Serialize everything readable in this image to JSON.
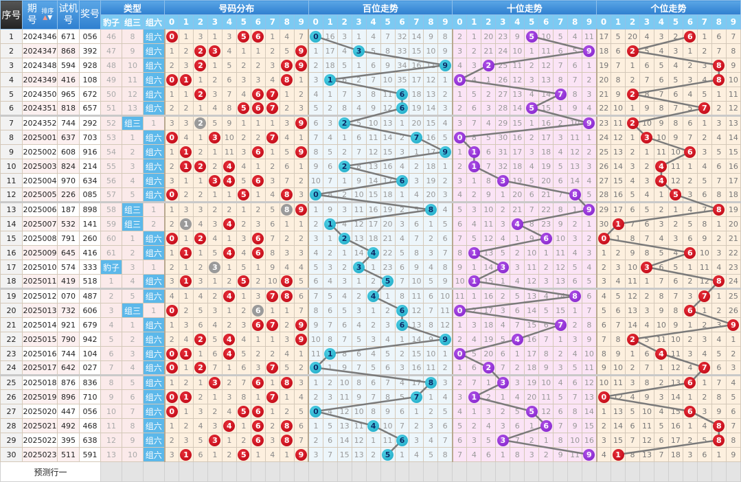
{
  "header": {
    "seq": "序号",
    "issue": "期号",
    "sort_label": "排序",
    "test": "试机号",
    "award": "奖号",
    "type_group": "类型",
    "type_cols": [
      "豹子",
      "组三",
      "组六"
    ],
    "dist_group": "号码分布",
    "bai_group": "百位走势",
    "shi_group": "十位走势",
    "ge_group": "个位走势",
    "digits": [
      "0",
      "1",
      "2",
      "3",
      "4",
      "5",
      "6",
      "7",
      "8",
      "9"
    ]
  },
  "colors": {
    "dist_ball": "#c8001a",
    "repeat_ball": "#9a9a9a",
    "bai_ball": "#27b5d0",
    "shi_ball": "#8a2be2",
    "ge_ball": "#c8001a",
    "line": "#7a7a7a",
    "type_hit": "#5cb8ea"
  },
  "first_row_omissions": {
    "type": [
      46,
      8,
      0
    ],
    "dist": [
      0,
      1,
      3,
      1,
      3,
      0,
      0,
      1,
      4,
      7
    ],
    "bai": [
      0,
      16,
      3,
      1,
      4,
      7,
      32,
      14,
      9,
      8
    ],
    "shi": [
      2,
      1,
      20,
      23,
      9,
      0,
      10,
      5,
      4,
      11
    ],
    "ge": [
      17,
      5,
      20,
      4,
      3,
      2,
      0,
      1,
      6,
      7
    ]
  },
  "rows": [
    {
      "seq": "1",
      "issue": "2024346",
      "test": "671",
      "award": "056"
    },
    {
      "seq": "2",
      "issue": "2024347",
      "test": "868",
      "award": "392"
    },
    {
      "seq": "3",
      "issue": "2024348",
      "test": "594",
      "award": "928"
    },
    {
      "seq": "4",
      "issue": "2024349",
      "test": "416",
      "award": "108"
    },
    {
      "seq": "5",
      "issue": "2024350",
      "test": "965",
      "award": "672"
    },
    {
      "seq": "6",
      "issue": "2024351",
      "test": "818",
      "award": "657"
    },
    {
      "seq": "7",
      "issue": "2024352",
      "test": "744",
      "award": "292"
    },
    {
      "seq": "8",
      "issue": "2025001",
      "test": "637",
      "award": "703"
    },
    {
      "seq": "9",
      "issue": "2025002",
      "test": "608",
      "award": "916"
    },
    {
      "seq": "10",
      "issue": "2025003",
      "test": "824",
      "award": "214"
    },
    {
      "seq": "11",
      "issue": "2025004",
      "test": "970",
      "award": "634"
    },
    {
      "seq": "12",
      "issue": "2025005",
      "test": "226",
      "award": "085"
    },
    {
      "seq": "13",
      "issue": "2025006",
      "test": "187",
      "award": "898"
    },
    {
      "seq": "14",
      "issue": "2025007",
      "test": "532",
      "award": "141"
    },
    {
      "seq": "15",
      "issue": "2025008",
      "test": "791",
      "award": "260"
    },
    {
      "seq": "16",
      "issue": "2025009",
      "test": "645",
      "award": "416"
    },
    {
      "seq": "17",
      "issue": "2025010",
      "test": "574",
      "award": "333"
    },
    {
      "seq": "18",
      "issue": "2025011",
      "test": "419",
      "award": "518"
    },
    {
      "seq": "19",
      "issue": "2025012",
      "test": "070",
      "award": "487"
    },
    {
      "seq": "20",
      "issue": "2025013",
      "test": "732",
      "award": "606"
    },
    {
      "seq": "21",
      "issue": "2025014",
      "test": "921",
      "award": "679"
    },
    {
      "seq": "22",
      "issue": "2025015",
      "test": "790",
      "award": "942"
    },
    {
      "seq": "23",
      "issue": "2025016",
      "test": "744",
      "award": "104"
    },
    {
      "seq": "24",
      "issue": "2025017",
      "test": "642",
      "award": "027"
    },
    {
      "seq": "25",
      "issue": "2025018",
      "test": "876",
      "award": "836"
    },
    {
      "seq": "26",
      "issue": "2025019",
      "test": "896",
      "award": "710"
    },
    {
      "seq": "27",
      "issue": "2025020",
      "test": "447",
      "award": "056"
    },
    {
      "seq": "28",
      "issue": "2025021",
      "test": "492",
      "award": "468"
    },
    {
      "seq": "29",
      "issue": "2025022",
      "test": "395",
      "award": "638"
    },
    {
      "seq": "30",
      "issue": "2025023",
      "test": "511",
      "award": "591"
    }
  ],
  "prediction_row_label": "预测行一"
}
